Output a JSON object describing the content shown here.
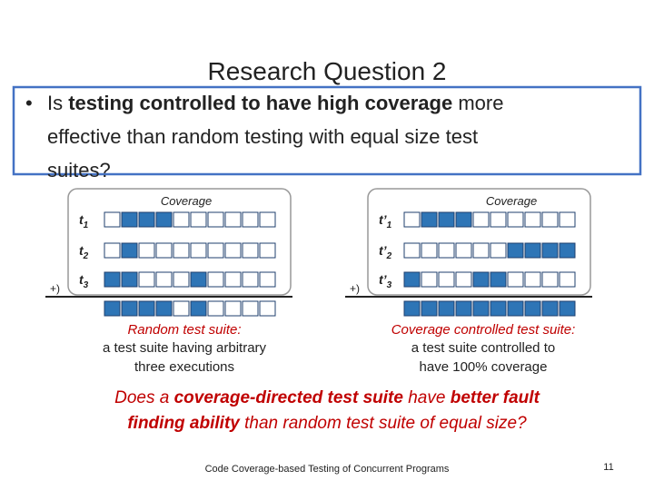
{
  "title": "Research Question 2",
  "bullet": {
    "lines": [
      [
        "Is ",
        "testing controlled to have high coverage",
        " more"
      ],
      [
        "effective than random testing with equal size test"
      ],
      [
        "suites?"
      ]
    ]
  },
  "left": {
    "coverage_label": "Coverage",
    "rows": [
      {
        "label": "t",
        "sub": "1"
      },
      {
        "label": "t",
        "sub": "2"
      },
      {
        "label": "t",
        "sub": "3"
      }
    ],
    "plus": "+)",
    "caption": {
      "heading": "Random test suite:",
      "lines": [
        "a test suite having arbitrary",
        "three executions"
      ]
    }
  },
  "right": {
    "coverage_label": "Coverage",
    "rows": [
      {
        "label": "t’",
        "sub": "1"
      },
      {
        "label": "t’",
        "sub": "2"
      },
      {
        "label": "t’",
        "sub": "3"
      }
    ],
    "plus": "+)",
    "caption": {
      "heading": "Coverage controlled test suite:",
      "lines": [
        "a test suite controlled to",
        "have 100% coverage"
      ]
    }
  },
  "question": {
    "lines": [
      [
        "Does a ",
        "coverage-directed test suite",
        " have ",
        "better fault"
      ],
      [
        "finding ability",
        " than random test suite of equal size?"
      ]
    ]
  },
  "footer": "Code Coverage-based Testing of Concurrent Programs",
  "page_number": "11"
}
